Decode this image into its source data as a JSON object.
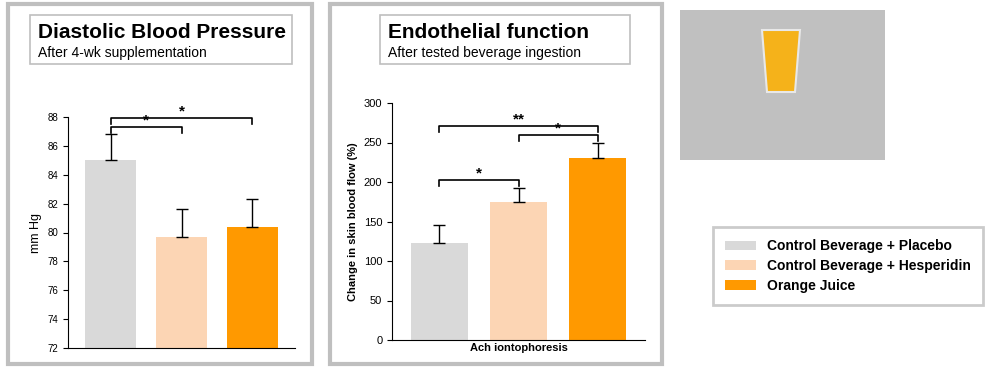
{
  "chart_data": [
    {
      "type": "bar",
      "title": "Diastolic Blood Pressure",
      "subtitle": "After 4-wk supplementation",
      "y_label": "mm Hg",
      "ylim": [
        72,
        88
      ],
      "yticks": [
        72,
        74,
        76,
        78,
        80,
        82,
        84,
        86,
        88
      ],
      "tick_labels": "y",
      "series": [
        {
          "name": "Control Beverage + Placebo",
          "color": "#d9d9d9",
          "values": [
            85.0
          ],
          "errors": [
            1.8
          ]
        },
        {
          "name": "Control Beverage + Hesperidin",
          "color": "#fcd5b4",
          "values": [
            79.7
          ],
          "errors": [
            1.9
          ]
        },
        {
          "name": "Orange Juice",
          "color": "#ff9900",
          "values": [
            80.4
          ],
          "errors": [
            1.9
          ]
        }
      ],
      "significance": [
        {
          "between": [
            "Control Beverage + Placebo",
            "Control Beverage + Hesperidin"
          ],
          "label": "*"
        },
        {
          "between": [
            "Control Beverage + Placebo",
            "Orange Juice"
          ],
          "label": "*"
        }
      ]
    },
    {
      "type": "bar",
      "title": "Endothelial function",
      "subtitle": "After tested beverage ingestion",
      "y_label": "Change in skin blood flow (%)",
      "x_label": "Ach iontophoresis",
      "ylim": [
        0,
        300
      ],
      "yticks": [
        0,
        50,
        100,
        150,
        200,
        250,
        300
      ],
      "tick_labels": "y",
      "legend": "lower right",
      "series": [
        {
          "name": "Control Beverage + Placebo",
          "color": "#d9d9d9",
          "values": [
            123
          ],
          "errors": [
            22
          ]
        },
        {
          "name": "Control Beverage + Hesperidin",
          "color": "#fcd5b4",
          "values": [
            175
          ],
          "errors": [
            18
          ]
        },
        {
          "name": "Orange Juice",
          "color": "#ff9900",
          "values": [
            230
          ],
          "errors": [
            20
          ]
        }
      ],
      "significance": [
        {
          "between": [
            "Control Beverage + Placebo",
            "Control Beverage + Hesperidin"
          ],
          "label": "*"
        },
        {
          "between": [
            "Control Beverage + Hesperidin",
            "Orange Juice"
          ],
          "label": "*"
        },
        {
          "between": [
            "Control Beverage + Placebo",
            "Orange Juice"
          ],
          "label": "**"
        }
      ]
    }
  ]
}
